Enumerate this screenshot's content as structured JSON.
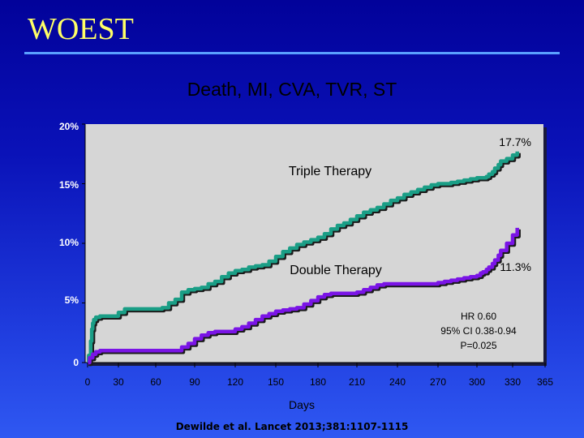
{
  "slide": {
    "title": "WOEST",
    "subtitle": "Death, MI, CVA, TVR, ST",
    "citation": "Dewilde et al.  Lancet  2013;381:1107-1115"
  },
  "chart_data": {
    "type": "line",
    "step": true,
    "title": "Death, MI, CVA, TVR, ST",
    "xlabel": "Days",
    "ylabel": "",
    "xlim": [
      0,
      365
    ],
    "ylim": [
      0,
      20
    ],
    "x_ticks": [
      {
        "value": 0,
        "label": "0"
      },
      {
        "value": 30,
        "label": "30"
      },
      {
        "value": 60,
        "label": "60"
      },
      {
        "value": 90,
        "label": "90"
      },
      {
        "value": 120,
        "label": "120"
      },
      {
        "value": 150,
        "label": "150"
      },
      {
        "value": 180,
        "label": "180"
      },
      {
        "value": 210,
        "label": "210"
      },
      {
        "value": 240,
        "label": "240"
      },
      {
        "value": 270,
        "label": "270"
      },
      {
        "value": 300,
        "label": "300"
      },
      {
        "value": 330,
        "label": "330"
      },
      {
        "value": 365,
        "label": "365"
      }
    ],
    "y_ticks": [
      {
        "value": 0,
        "label": "0"
      },
      {
        "value": 5,
        "label": "5%"
      },
      {
        "value": 10,
        "label": "10%"
      },
      {
        "value": 15,
        "label": "15%"
      },
      {
        "value": 20,
        "label": "20%"
      }
    ],
    "series": [
      {
        "name": "Triple Therapy",
        "end_label": "17.7%",
        "color": "#1a9e86",
        "x": [
          0,
          1,
          3,
          4,
          5,
          6,
          8,
          12,
          20,
          28,
          30,
          35,
          40,
          45,
          50,
          55,
          60,
          65,
          70,
          75,
          80,
          85,
          90,
          95,
          100,
          105,
          110,
          115,
          120,
          125,
          130,
          135,
          140,
          145,
          150,
          155,
          160,
          165,
          170,
          175,
          180,
          185,
          190,
          195,
          200,
          205,
          210,
          215,
          220,
          225,
          230,
          235,
          240,
          245,
          250,
          255,
          260,
          265,
          270,
          275,
          280,
          285,
          290,
          295,
          300,
          303,
          305,
          308,
          310,
          313,
          315,
          318,
          320,
          325,
          330,
          335
        ],
        "y": [
          0,
          0.6,
          1.8,
          2.8,
          3.3,
          3.6,
          3.8,
          3.9,
          3.9,
          3.9,
          4.2,
          4.5,
          4.5,
          4.5,
          4.5,
          4.5,
          4.5,
          4.6,
          5.0,
          5.3,
          5.9,
          6.1,
          6.2,
          6.3,
          6.6,
          6.8,
          7.2,
          7.5,
          7.7,
          7.8,
          8.0,
          8.1,
          8.2,
          8.5,
          8.9,
          9.3,
          9.6,
          9.9,
          10.1,
          10.3,
          10.5,
          10.8,
          11.2,
          11.5,
          11.7,
          12.0,
          12.3,
          12.6,
          12.8,
          13.0,
          13.3,
          13.6,
          13.8,
          14.1,
          14.3,
          14.5,
          14.7,
          14.9,
          15.0,
          15.0,
          15.1,
          15.2,
          15.3,
          15.4,
          15.5,
          15.5,
          15.5,
          15.6,
          15.8,
          16.0,
          16.3,
          16.6,
          16.9,
          17.1,
          17.4,
          17.7
        ]
      },
      {
        "name": "Double Therapy",
        "end_label": "11.3%",
        "color": "#7a14e6",
        "x": [
          0,
          2,
          5,
          8,
          12,
          20,
          30,
          40,
          50,
          60,
          65,
          70,
          75,
          80,
          85,
          90,
          95,
          100,
          105,
          110,
          115,
          120,
          125,
          130,
          135,
          140,
          145,
          150,
          155,
          160,
          165,
          170,
          175,
          180,
          185,
          190,
          195,
          200,
          205,
          210,
          215,
          220,
          225,
          230,
          235,
          240,
          245,
          250,
          255,
          260,
          265,
          270,
          275,
          280,
          285,
          290,
          295,
          300,
          303,
          305,
          308,
          310,
          313,
          315,
          318,
          320,
          325,
          330,
          335
        ],
        "y": [
          0,
          0.4,
          0.7,
          0.9,
          1.0,
          1.0,
          1.0,
          1.0,
          1.0,
          1.0,
          1.0,
          1.0,
          1.0,
          1.3,
          1.6,
          2.0,
          2.3,
          2.5,
          2.6,
          2.6,
          2.6,
          2.8,
          3.0,
          3.3,
          3.6,
          3.9,
          4.1,
          4.3,
          4.4,
          4.5,
          4.6,
          4.9,
          5.2,
          5.5,
          5.7,
          5.8,
          5.8,
          5.8,
          5.8,
          5.9,
          6.1,
          6.3,
          6.5,
          6.6,
          6.6,
          6.6,
          6.6,
          6.6,
          6.6,
          6.6,
          6.6,
          6.7,
          6.8,
          6.9,
          7.0,
          7.1,
          7.2,
          7.3,
          7.5,
          7.6,
          7.8,
          8.0,
          8.3,
          8.6,
          9.0,
          9.4,
          10.0,
          10.7,
          11.3
        ]
      }
    ],
    "annotations": [
      "HR 0.60",
      "95%  CI 0.38-0.94",
      "P=0.025"
    ]
  }
}
